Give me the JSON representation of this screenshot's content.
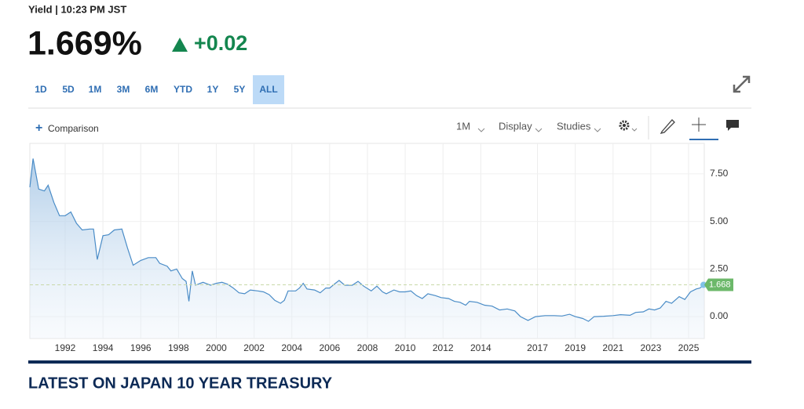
{
  "header": {
    "label": "Yield | 10:23 PM JST",
    "price": "1.669%",
    "change": "+0.02"
  },
  "ranges": [
    "1D",
    "5D",
    "1M",
    "3M",
    "6M",
    "YTD",
    "1Y",
    "5Y",
    "ALL"
  ],
  "toolbar": {
    "comparison": "Comparison",
    "interval": "1M",
    "display": "Display",
    "studies": "Studies"
  },
  "section_title": "LATEST ON JAPAN 10 YEAR TREASURY",
  "chart_data": {
    "type": "line",
    "grid": true,
    "x": [
      1990.13,
      1990.3,
      1990.6,
      1990.9,
      1991.1,
      1991.4,
      1991.7,
      1992.0,
      1992.3,
      1992.6,
      1992.9,
      1993.3,
      1993.5,
      1993.7,
      1994.0,
      1994.3,
      1994.6,
      1995.0,
      1995.3,
      1995.6,
      1996.0,
      1996.4,
      1996.8,
      1997.0,
      1997.4,
      1997.6,
      1997.9,
      1998.2,
      1998.4,
      1998.55,
      1998.73,
      1998.9,
      1999.3,
      1999.7,
      2000.0,
      2000.3,
      2000.6,
      2000.9,
      2001.2,
      2001.5,
      2001.8,
      2002.2,
      2002.5,
      2002.8,
      2003.1,
      2003.4,
      2003.6,
      2003.8,
      2004.2,
      2004.4,
      2004.6,
      2004.8,
      2005.2,
      2005.5,
      2005.8,
      2006.0,
      2006.3,
      2006.5,
      2006.8,
      2007.2,
      2007.5,
      2007.8,
      2008.2,
      2008.5,
      2008.8,
      2009.0,
      2009.4,
      2009.7,
      2010.0,
      2010.3,
      2010.6,
      2010.9,
      2011.2,
      2011.6,
      2011.9,
      2012.3,
      2012.6,
      2012.9,
      2013.2,
      2013.4,
      2013.8,
      2014.2,
      2014.6,
      2015.0,
      2015.4,
      2015.8,
      2016.1,
      2016.5,
      2016.9,
      2017.4,
      2017.9,
      2018.3,
      2018.7,
      2019.0,
      2019.4,
      2019.7,
      2020.0,
      2020.5,
      2021.0,
      2021.4,
      2021.9,
      2022.2,
      2022.6,
      2022.9,
      2023.2,
      2023.5,
      2023.8,
      2024.1,
      2024.5,
      2024.8,
      2025.1,
      2025.4,
      2025.6,
      2025.83
    ],
    "series": [
      {
        "color": "#4a8cc7",
        "values": [
          6.8,
          8.3,
          6.7,
          6.6,
          6.9,
          6.0,
          5.3,
          5.3,
          5.5,
          4.9,
          4.55,
          4.6,
          4.6,
          3.0,
          4.25,
          4.3,
          4.55,
          4.6,
          3.6,
          2.7,
          2.95,
          3.1,
          3.1,
          2.8,
          2.65,
          2.4,
          2.5,
          2.0,
          1.85,
          0.8,
          2.4,
          1.65,
          1.8,
          1.65,
          1.75,
          1.8,
          1.7,
          1.5,
          1.25,
          1.2,
          1.4,
          1.35,
          1.3,
          1.15,
          0.85,
          0.7,
          0.85,
          1.35,
          1.35,
          1.5,
          1.75,
          1.45,
          1.4,
          1.25,
          1.5,
          1.5,
          1.75,
          1.9,
          1.65,
          1.65,
          1.85,
          1.6,
          1.35,
          1.6,
          1.3,
          1.2,
          1.4,
          1.3,
          1.3,
          1.35,
          1.1,
          0.95,
          1.2,
          1.1,
          1.0,
          0.95,
          0.8,
          0.75,
          0.6,
          0.8,
          0.75,
          0.6,
          0.55,
          0.35,
          0.4,
          0.3,
          0.0,
          -0.2,
          0.0,
          0.05,
          0.05,
          0.03,
          0.12,
          0.0,
          -0.1,
          -0.25,
          0.0,
          0.02,
          0.05,
          0.1,
          0.07,
          0.22,
          0.25,
          0.4,
          0.35,
          0.45,
          0.8,
          0.7,
          1.05,
          0.9,
          1.3,
          1.45,
          1.5,
          1.668
        ]
      }
    ],
    "last_value": 1.668,
    "xlim": [
      1990.13,
      2025.83
    ],
    "xticks": [
      1992,
      1994,
      1996,
      1998,
      2000,
      2002,
      2004,
      2006,
      2008,
      2010,
      2012,
      2014,
      2017,
      2019,
      2021,
      2023,
      2025
    ],
    "ylim": [
      -1.15,
      9.1
    ],
    "yticks": [
      {
        "value": 7.5,
        "label": "7.50"
      },
      {
        "value": 5,
        "label": "5.00"
      },
      {
        "value": 2.5,
        "label": "2.50"
      },
      {
        "value": 0,
        "label": "0.00"
      }
    ]
  }
}
